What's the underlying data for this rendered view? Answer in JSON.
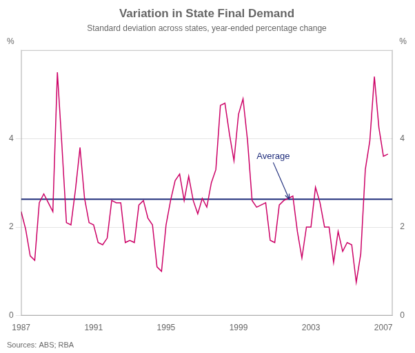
{
  "chart_data": {
    "type": "line",
    "title": "Variation in State Final Demand",
    "subtitle": "Standard deviation across states, year-ended percentage change",
    "source": "Sources: ABS; RBA",
    "ylabel": "%",
    "y2label": "%",
    "color": "#CC0066",
    "x": [
      1987.0,
      1987.25,
      1987.5,
      1987.75,
      1988.0,
      1988.25,
      1988.5,
      1988.75,
      1989.0,
      1989.25,
      1989.5,
      1989.75,
      1990.0,
      1990.25,
      1990.5,
      1990.75,
      1991.0,
      1991.25,
      1991.5,
      1991.75,
      1992.0,
      1992.25,
      1992.5,
      1992.75,
      1993.0,
      1993.25,
      1993.5,
      1993.75,
      1994.0,
      1994.25,
      1994.5,
      1994.75,
      1995.0,
      1995.25,
      1995.5,
      1995.75,
      1996.0,
      1996.25,
      1996.5,
      1996.75,
      1997.0,
      1997.25,
      1997.5,
      1997.75,
      1998.0,
      1998.25,
      1998.5,
      1998.75,
      1999.0,
      1999.25,
      1999.5,
      1999.75,
      2000.0,
      2000.25,
      2000.5,
      2000.75,
      2001.0,
      2001.25,
      2001.5,
      2001.75,
      2002.0,
      2002.25,
      2002.5,
      2002.75,
      2003.0,
      2003.25,
      2003.5,
      2003.75,
      2004.0,
      2004.25,
      2004.5,
      2004.75,
      2005.0,
      2005.25,
      2005.5,
      2005.75,
      2006.0,
      2006.25,
      2006.5,
      2006.75,
      2007.0,
      2007.25
    ],
    "values": [
      2.35,
      1.95,
      1.35,
      1.25,
      2.55,
      2.75,
      2.55,
      2.35,
      5.5,
      3.85,
      2.1,
      2.05,
      2.85,
      3.8,
      2.65,
      2.1,
      2.05,
      1.65,
      1.6,
      1.75,
      2.6,
      2.55,
      2.55,
      1.65,
      1.7,
      1.65,
      2.5,
      2.6,
      2.2,
      2.05,
      1.1,
      1.0,
      2.05,
      2.6,
      3.05,
      3.2,
      2.6,
      3.15,
      2.6,
      2.3,
      2.65,
      2.45,
      3.0,
      3.3,
      4.75,
      4.8,
      4.1,
      3.5,
      4.55,
      4.9,
      3.95,
      2.6,
      2.45,
      2.5,
      2.55,
      1.7,
      1.65,
      2.5,
      2.6,
      2.65,
      2.7,
      1.9,
      1.3,
      2.0,
      2.0,
      2.9,
      2.55,
      2.0,
      2.0,
      1.2,
      1.9,
      1.45,
      1.65,
      1.6,
      0.75,
      1.4,
      3.3,
      3.95,
      5.4,
      4.25,
      3.6,
      3.65
    ],
    "xlim": [
      1987,
      2007.5
    ],
    "xticks": [
      1987,
      1991,
      1995,
      1999,
      2003,
      2007
    ],
    "ylim": [
      0,
      6
    ],
    "yticks": [
      0,
      2,
      4
    ],
    "y2lim": [
      0,
      6
    ],
    "y2ticks": [
      0,
      2,
      4
    ],
    "grid": "y",
    "annotations": [
      {
        "type": "hline",
        "y": 2.63,
        "color": "#1F2D7B"
      },
      {
        "type": "arrow",
        "text": "Average",
        "x": 2001.8,
        "y": 2.63,
        "text_x": 2000.0,
        "text_y": 3.6,
        "color": "#1F2D7B"
      }
    ]
  }
}
